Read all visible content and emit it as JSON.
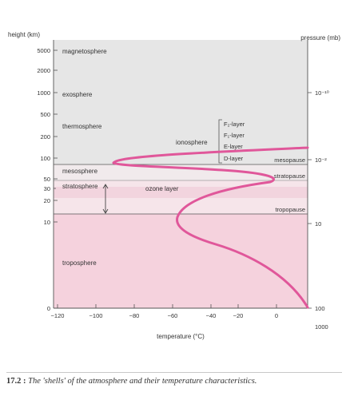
{
  "figure": {
    "left_axis_title": "height (km)",
    "right_axis_title": "pressure (mb)",
    "x_axis_title": "temperature (°C)",
    "x_ticks": [
      "−120",
      "−100",
      "−80",
      "−60",
      "−40",
      "−20",
      "0"
    ],
    "y_ticks": [
      "5000",
      "2000",
      "1000",
      "500",
      "200",
      "100",
      "50",
      "20",
      "10",
      "0"
    ],
    "y_ticks_minor": [
      "30"
    ],
    "pressure_ticks": [
      "10⁻¹⁰",
      "10⁻²",
      "10",
      "100",
      "1000"
    ],
    "layers": [
      "magnetosphere",
      "exosphere",
      "thermosphere",
      "mesosphere",
      "stratosphere",
      "troposphere"
    ],
    "ionosphere_label": "ionosphere",
    "ionosphere_sublayers": [
      "F₂-layer",
      "F₁-layer",
      "E-layer",
      "D-layer"
    ],
    "boundaries": [
      "mesopause",
      "stratopause",
      "tropopause"
    ],
    "ozone_label": "ozone layer",
    "colors": {
      "upper_fill": "#e6e6e6",
      "mesosphere_fill": "#f1eaec",
      "stratosphere_fill": "#f6e5ea",
      "ozone_fill": "#f2d4de",
      "troposphere_fill": "#f5d2dd",
      "curve": "#e0579a",
      "axis": "#555555"
    }
  },
  "caption": {
    "number": "17.2 :",
    "text": "The 'shells' of the atmosphere and their temperature characteristics."
  }
}
